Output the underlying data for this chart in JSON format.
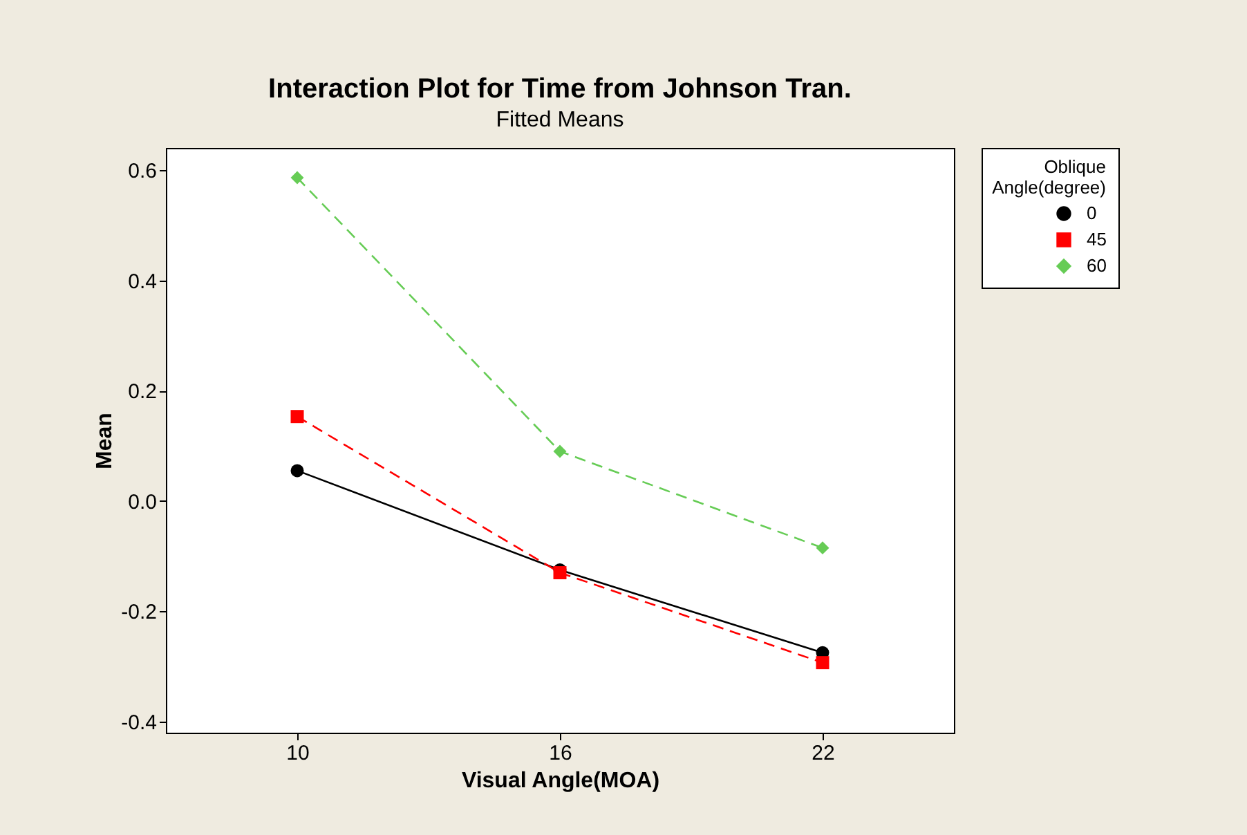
{
  "chart_data": {
    "type": "line",
    "title": "Interaction Plot for Time from Johnson Tran.",
    "subtitle": "Fitted Means",
    "xlabel": "Visual Angle(MOA)",
    "ylabel": "Mean",
    "legend_title": "Oblique Angle(degree)",
    "legend": "right",
    "grid": false,
    "categories": [
      "10",
      "16",
      "22"
    ],
    "ylim": [
      -0.42,
      0.64
    ],
    "yticks": [
      -0.4,
      -0.2,
      {
        "value": 0,
        "label": "0.0"
      },
      0.2,
      0.4,
      0.6
    ],
    "series": [
      {
        "name": "0",
        "color": "#000000",
        "marker": "circle",
        "line_style": "solid",
        "values": [
          0.055,
          -0.125,
          -0.275
        ]
      },
      {
        "name": "45",
        "color": "#ff0000",
        "marker": "square",
        "line_style": "dashed",
        "values": [
          0.153,
          -0.13,
          -0.293
        ]
      },
      {
        "name": "60",
        "color": "#66cc55",
        "marker": "diamond",
        "line_style": "dashed",
        "values": [
          0.586,
          0.09,
          -0.085
        ]
      }
    ]
  }
}
